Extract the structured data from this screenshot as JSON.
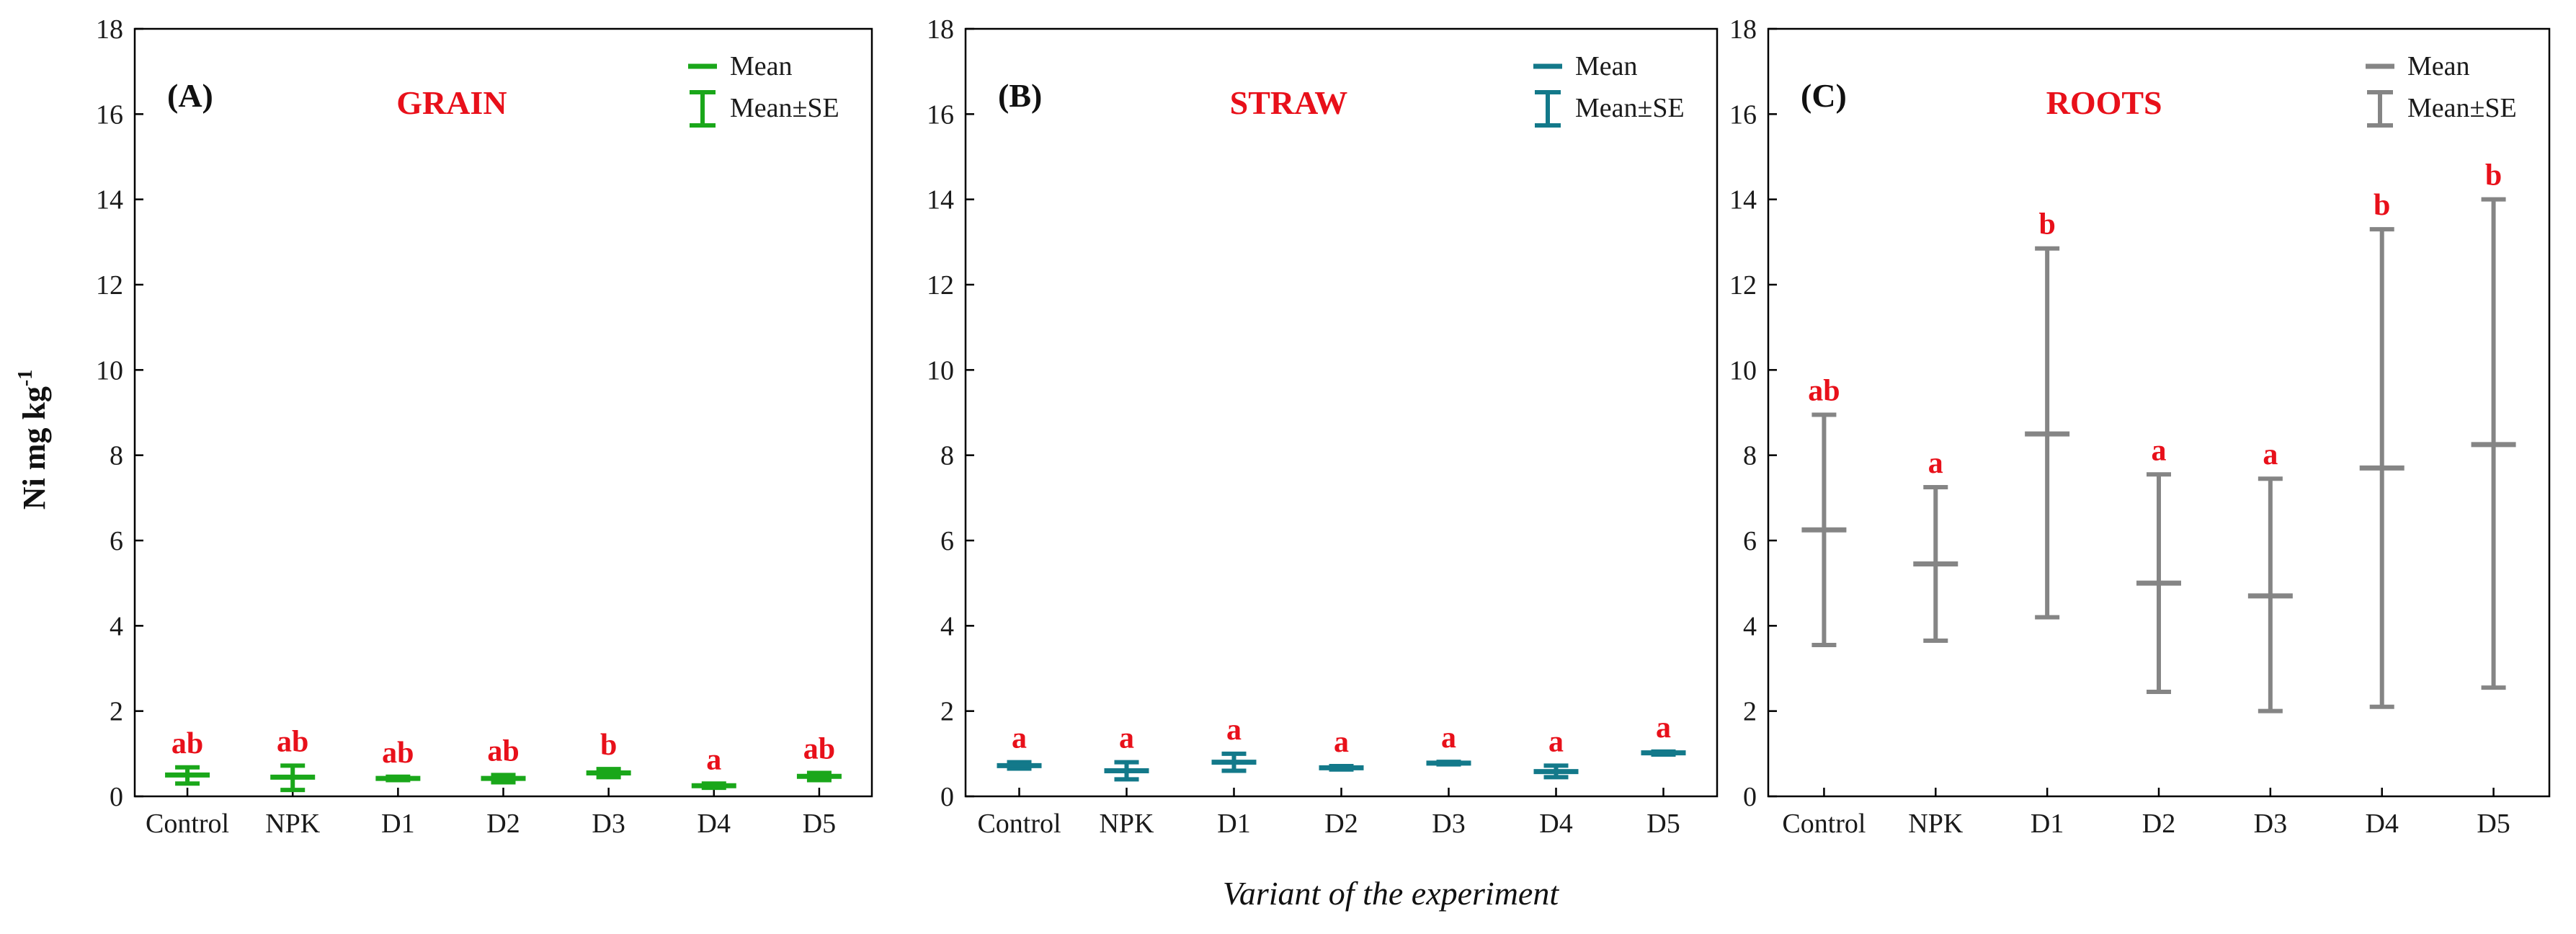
{
  "y_axis_title": "Ni mg kg",
  "y_axis_title_sup": "-1",
  "x_axis_title": "Variant of the experiment",
  "legend": {
    "mean": "Mean",
    "se": "Mean±SE"
  },
  "colors": {
    "sig": "#e8101a",
    "axis": "#000000"
  },
  "chart_data": [
    {
      "type": "line",
      "subtype": "mean-error-plot",
      "panel_label": "(A)",
      "title": "GRAIN",
      "color": "#1aa71a",
      "categories": [
        "Control",
        "NPK",
        "D1",
        "D2",
        "D3",
        "D4",
        "D5"
      ],
      "mean": [
        0.5,
        0.45,
        0.42,
        0.42,
        0.55,
        0.25,
        0.47
      ],
      "se_low": [
        0.3,
        0.15,
        0.38,
        0.33,
        0.45,
        0.2,
        0.38
      ],
      "se_high": [
        0.68,
        0.72,
        0.46,
        0.5,
        0.64,
        0.3,
        0.55
      ],
      "letters": [
        "ab",
        "ab",
        "ab",
        "ab",
        "b",
        "a",
        "ab"
      ],
      "ylim": [
        0,
        18
      ],
      "yticks": [
        0,
        2,
        4,
        6,
        8,
        10,
        12,
        14,
        16,
        18
      ]
    },
    {
      "type": "line",
      "subtype": "mean-error-plot",
      "panel_label": "(B)",
      "title": "STRAW",
      "color": "#13798a",
      "categories": [
        "Control",
        "NPK",
        "D1",
        "D2",
        "D3",
        "D4",
        "D5"
      ],
      "mean": [
        0.72,
        0.6,
        0.8,
        0.67,
        0.78,
        0.58,
        1.02
      ],
      "se_low": [
        0.65,
        0.4,
        0.6,
        0.63,
        0.75,
        0.45,
        0.98
      ],
      "se_high": [
        0.8,
        0.8,
        1.0,
        0.71,
        0.81,
        0.72,
        1.05
      ],
      "letters": [
        "a",
        "a",
        "a",
        "a",
        "a",
        "a",
        "a"
      ],
      "ylim": [
        0,
        18
      ],
      "yticks": [
        0,
        2,
        4,
        6,
        8,
        10,
        12,
        14,
        16,
        18
      ]
    },
    {
      "type": "line",
      "subtype": "mean-error-plot",
      "panel_label": "(C)",
      "title": "ROOTS",
      "color": "#858585",
      "categories": [
        "Control",
        "NPK",
        "D1",
        "D2",
        "D3",
        "D4",
        "D5"
      ],
      "mean": [
        6.25,
        5.45,
        8.5,
        5.0,
        4.7,
        7.7,
        8.25
      ],
      "se_low": [
        3.55,
        3.65,
        4.2,
        2.45,
        2.0,
        2.1,
        2.55
      ],
      "se_high": [
        8.95,
        7.25,
        12.85,
        7.55,
        7.45,
        13.3,
        14.0
      ],
      "letters": [
        "ab",
        "a",
        "b",
        "a",
        "a",
        "b",
        "b"
      ],
      "ylim": [
        0,
        18
      ],
      "yticks": [
        0,
        2,
        4,
        6,
        8,
        10,
        12,
        14,
        16,
        18
      ]
    }
  ]
}
